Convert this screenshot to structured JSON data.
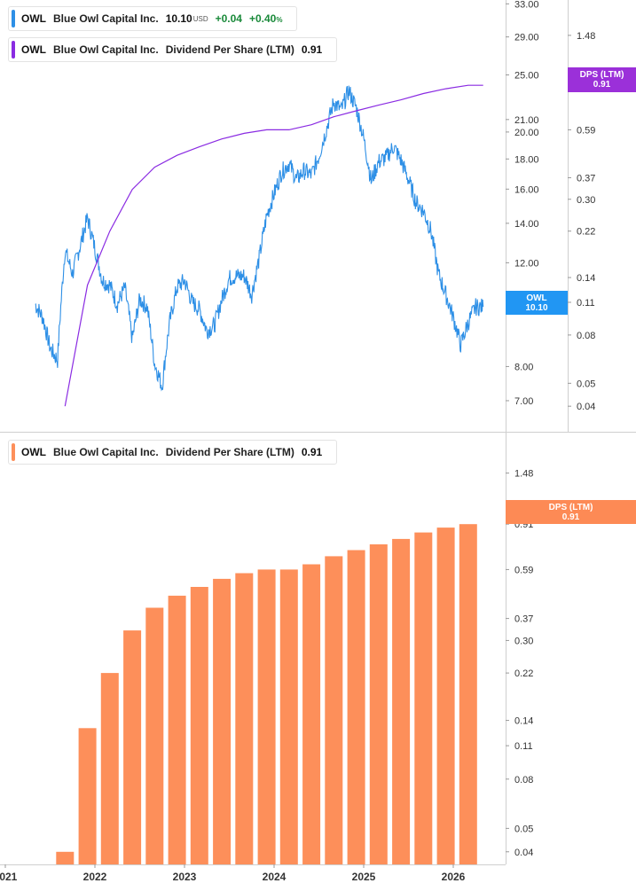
{
  "legend_price": {
    "ticker": "OWL",
    "company": "Blue Owl Capital Inc.",
    "price": "10.10",
    "currency": "USD",
    "change": "+0.04",
    "change_pct": "+0.40",
    "pct_sign": "%"
  },
  "legend_dps_line": {
    "ticker": "OWL",
    "company": "Blue Owl Capital Inc.",
    "metric": "Dividend Per Share (LTM)",
    "value": "0.91"
  },
  "legend_dps_bar": {
    "ticker": "OWL",
    "company": "Blue Owl Capital Inc.",
    "metric": "Dividend Per Share (LTM)",
    "value": "0.91"
  },
  "tags": {
    "price_tag_line1": "OWL",
    "price_tag_line2": "10.10",
    "dps_top_line1": "DPS (LTM)",
    "dps_top_line2": "0.91",
    "dps_bottom_line1": "DPS (LTM)",
    "dps_bottom_line2": "0.91"
  },
  "colors": {
    "price": "#2d8fe6",
    "dps_line": "#8a2be2",
    "dps_bar": "#fd8f5a",
    "price_tag": "#2196f3",
    "dps_top_tag": "#9b30d9",
    "dps_bottom_tag": "#fd8a55",
    "grid": "#e8e8e8"
  },
  "chart_data": [
    {
      "type": "line",
      "title": "",
      "series": [
        {
          "name": "OWL",
          "axis": "left",
          "scale": "log",
          "ylim": [
            6.2,
            33.5
          ],
          "ticks": [
            "33.00",
            "29.00",
            "25.00",
            "21.00",
            "20.00",
            "18.00",
            "16.00",
            "14.00",
            "12.00",
            "10.00",
            "8.00",
            "7.00"
          ],
          "x": [
            "2021-05",
            "2021-06",
            "2021-07",
            "2021-08",
            "2021-09",
            "2021-10",
            "2021-11",
            "2021-12",
            "2022-01",
            "2022-02",
            "2022-03",
            "2022-04",
            "2022-05",
            "2022-06",
            "2022-07",
            "2022-08",
            "2022-09",
            "2022-10",
            "2022-11",
            "2022-12",
            "2023-01",
            "2023-02",
            "2023-03",
            "2023-04",
            "2023-05",
            "2023-06",
            "2023-07",
            "2023-08",
            "2023-09",
            "2023-10",
            "2023-11",
            "2023-12",
            "2024-01",
            "2024-02",
            "2024-03",
            "2024-04",
            "2024-05",
            "2024-06",
            "2024-07",
            "2024-08",
            "2024-09",
            "2024-10",
            "2024-11",
            "2024-12",
            "2025-01",
            "2025-02",
            "2025-03",
            "2025-04",
            "2025-05",
            "2025-06",
            "2025-07",
            "2025-08",
            "2025-09",
            "2025-10",
            "2025-11",
            "2025-12",
            "2026-01",
            "2026-02",
            "2026-03",
            "2026-04",
            "2026-05"
          ],
          "values": [
            10.2,
            9.7,
            8.6,
            8.2,
            12.6,
            11.5,
            12.8,
            14.3,
            12.7,
            11.2,
            11.0,
            10.2,
            10.9,
            8.9,
            10.4,
            10.1,
            8.1,
            7.4,
            9.5,
            10.9,
            11.2,
            10.3,
            10.0,
            9.2,
            9.4,
            10.4,
            11.3,
            11.4,
            11.4,
            10.6,
            12.2,
            14.4,
            15.7,
            17.1,
            17.7,
            16.6,
            17.2,
            16.9,
            18.2,
            20.2,
            22.5,
            21.8,
            23.5,
            22.0,
            19.5,
            16.5,
            17.8,
            18.1,
            18.9,
            17.9,
            16.6,
            15.2,
            14.7,
            13.6,
            11.5,
            10.6,
            9.7,
            8.7,
            9.5,
            10.1,
            10.1
          ]
        },
        {
          "name": "Dividend Per Share (LTM)",
          "axis": "right",
          "scale": "log",
          "ylim": [
            0.034,
            2.0
          ],
          "ticks": [
            "1.48",
            "0.91",
            "0.59",
            "0.37",
            "0.30",
            "0.22",
            "0.14",
            "0.11",
            "0.08",
            "0.05",
            "0.04"
          ],
          "x": [
            "2021-09",
            "2021-12",
            "2022-03",
            "2022-06",
            "2022-09",
            "2022-12",
            "2023-03",
            "2023-06",
            "2023-09",
            "2023-12",
            "2024-03",
            "2024-06",
            "2024-09",
            "2024-12",
            "2025-03",
            "2025-06",
            "2025-09",
            "2025-12",
            "2026-03",
            "2026-05"
          ],
          "values": [
            0.04,
            0.13,
            0.22,
            0.33,
            0.41,
            0.46,
            0.5,
            0.54,
            0.57,
            0.59,
            0.59,
            0.62,
            0.67,
            0.71,
            0.75,
            0.79,
            0.84,
            0.88,
            0.91,
            0.91
          ]
        }
      ]
    },
    {
      "type": "bar",
      "title": "",
      "series": [
        {
          "name": "Dividend Per Share (LTM)",
          "scale": "log",
          "ylim": [
            0.034,
            2.0
          ],
          "ticks": [
            "1.48",
            "0.91",
            "0.59",
            "0.37",
            "0.30",
            "0.22",
            "0.14",
            "0.11",
            "0.08",
            "0.05",
            "0.04"
          ],
          "x": [
            "2021-09",
            "2021-12",
            "2022-03",
            "2022-06",
            "2022-09",
            "2022-12",
            "2023-03",
            "2023-06",
            "2023-09",
            "2023-12",
            "2024-03",
            "2024-06",
            "2024-09",
            "2024-12",
            "2025-03",
            "2025-06",
            "2025-09",
            "2025-12",
            "2026-03"
          ],
          "values": [
            0.04,
            0.13,
            0.22,
            0.33,
            0.41,
            0.46,
            0.5,
            0.54,
            0.57,
            0.59,
            0.59,
            0.62,
            0.67,
            0.71,
            0.75,
            0.79,
            0.84,
            0.88,
            0.91
          ]
        }
      ],
      "xaxis_ticks": [
        "2021",
        "2022",
        "2023",
        "2024",
        "2025",
        "2026"
      ]
    }
  ]
}
